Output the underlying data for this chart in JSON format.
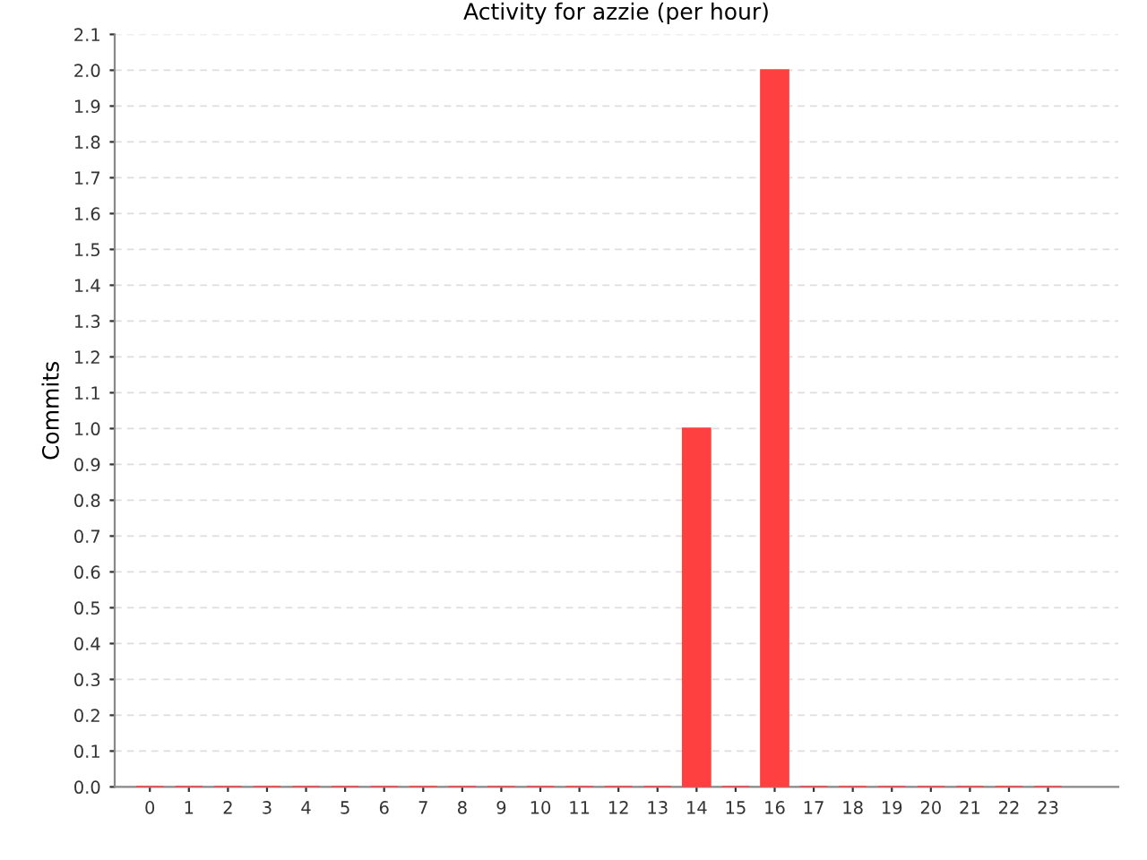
{
  "chart_data": {
    "type": "bar",
    "title": "Activity for azzie (per hour)",
    "ylabel": "Commits",
    "categories": [
      "0",
      "1",
      "2",
      "3",
      "4",
      "5",
      "6",
      "7",
      "8",
      "9",
      "10",
      "11",
      "12",
      "13",
      "14",
      "15",
      "16",
      "17",
      "18",
      "19",
      "20",
      "21",
      "22",
      "23"
    ],
    "values": [
      0,
      0,
      0,
      0,
      0,
      0,
      0,
      0,
      0,
      0,
      0,
      0,
      0,
      0,
      1,
      0,
      2,
      0,
      0,
      0,
      0,
      0,
      0,
      0
    ],
    "color": "#ff4040",
    "ylim": [
      0,
      2.1
    ],
    "yticks": [
      {
        "value": 0,
        "label": "0.0"
      },
      0.1,
      0.2,
      0.3,
      0.4,
      0.5,
      0.6,
      0.7,
      0.8,
      0.9,
      {
        "value": 1,
        "label": "1.0"
      },
      1.1,
      1.2,
      1.3,
      1.4,
      1.5,
      1.6,
      1.7,
      1.8,
      1.9,
      {
        "value": 2,
        "label": "2.0"
      },
      2.1
    ],
    "grid": "y"
  }
}
